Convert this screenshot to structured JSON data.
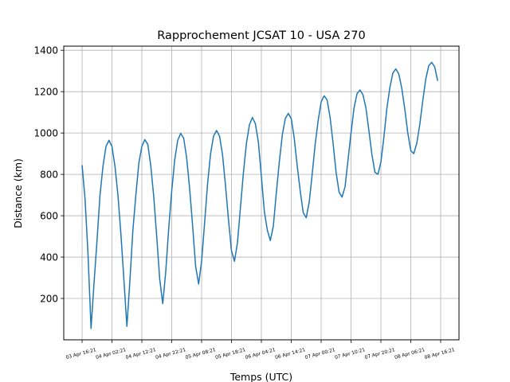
{
  "chart_data": {
    "type": "line",
    "title": "Rapprochement JCSAT 10 - USA 270",
    "xlabel": "Temps (UTC)",
    "ylabel": "Distance (km)",
    "ylim": [
      0,
      1420
    ],
    "y_ticks": [
      200,
      400,
      600,
      800,
      1000,
      1200,
      1400
    ],
    "x_ticks": [
      "03 Apr 16:21",
      "04 Apr 02:21",
      "04 Apr 12:21",
      "04 Apr 22:21",
      "05 Apr 08:21",
      "05 Apr 18:21",
      "06 Apr 04:21",
      "06 Apr 14:21",
      "07 Apr 00:21",
      "07 Apr 10:21",
      "07 Apr 20:21",
      "08 Apr 06:21",
      "08 Apr 16:21"
    ],
    "grid": true,
    "series": [
      {
        "color": "#1f77b4",
        "x_hours_step": 1,
        "values": [
          845,
          680,
          410,
          55,
          275,
          480,
          700,
          840,
          935,
          965,
          935,
          840,
          700,
          510,
          290,
          65,
          285,
          530,
          700,
          855,
          935,
          968,
          945,
          840,
          690,
          495,
          290,
          175,
          330,
          540,
          720,
          870,
          965,
          998,
          975,
          880,
          730,
          550,
          355,
          270,
          380,
          565,
          755,
          900,
          985,
          1012,
          985,
          895,
          745,
          580,
          430,
          380,
          470,
          640,
          810,
          950,
          1040,
          1075,
          1045,
          955,
          790,
          620,
          530,
          480,
          550,
          710,
          860,
          990,
          1070,
          1095,
          1070,
          975,
          840,
          720,
          615,
          590,
          665,
          800,
          945,
          1060,
          1150,
          1180,
          1160,
          1075,
          950,
          810,
          715,
          690,
          740,
          870,
          1000,
          1120,
          1190,
          1208,
          1185,
          1120,
          1010,
          895,
          810,
          800,
          860,
          980,
          1120,
          1220,
          1290,
          1310,
          1285,
          1215,
          1115,
          1000,
          915,
          900,
          950,
          1040,
          1155,
          1260,
          1325,
          1342,
          1320,
          1252
        ]
      }
    ]
  }
}
